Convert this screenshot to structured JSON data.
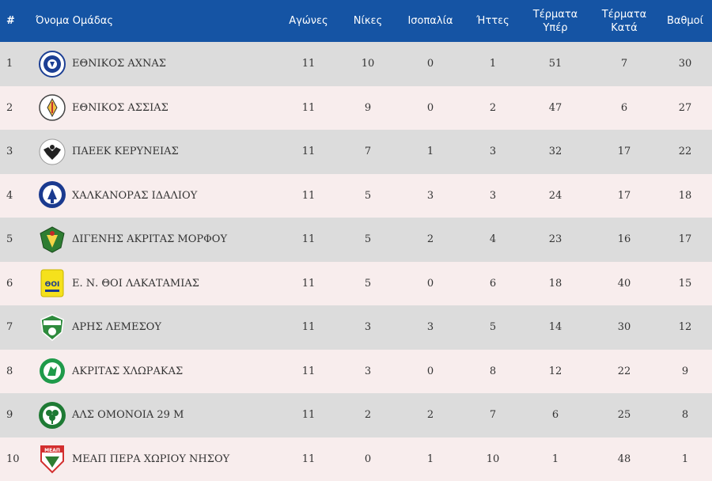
{
  "columns": {
    "pos": "#",
    "team": "Όνομα Ομάδας",
    "played": "Αγώνες",
    "wins": "Νίκες",
    "draws": "Ισοπαλία",
    "losses": "Ήττες",
    "gf_1": "Τέρματα",
    "gf_2": "Υπέρ",
    "ga_1": "Τέρματα",
    "ga_2": "Κατά",
    "points": "Βαθμοί"
  },
  "rows": [
    {
      "pos": "1",
      "team": "ΕΘΝΙΚΟΣ ΑΧΝΑΣ",
      "logo": "ethnikos-achnas-crest",
      "played": "11",
      "wins": "10",
      "draws": "0",
      "losses": "1",
      "gf": "51",
      "ga": "7",
      "points": "30"
    },
    {
      "pos": "2",
      "team": "ΕΘΝΙΚΟΣ ΑΣΣΙΑΣ",
      "logo": "ethnikos-assias-crest",
      "played": "11",
      "wins": "9",
      "draws": "0",
      "losses": "2",
      "gf": "47",
      "ga": "6",
      "points": "27"
    },
    {
      "pos": "3",
      "team": "ΠΑΕΕΚ ΚΕΡΥΝΕΙΑΣ",
      "logo": "paeek-crest",
      "played": "11",
      "wins": "7",
      "draws": "1",
      "losses": "3",
      "gf": "32",
      "ga": "17",
      "points": "22"
    },
    {
      "pos": "4",
      "team": "ΧΑΛΚΑΝΟΡΑΣ ΙΔΑΛΙΟΥ",
      "logo": "chalkanoras-crest",
      "played": "11",
      "wins": "5",
      "draws": "3",
      "losses": "3",
      "gf": "24",
      "ga": "17",
      "points": "18"
    },
    {
      "pos": "5",
      "team": "ΔΙΓΕΝΗΣ ΑΚΡΙΤΑΣ ΜΟΡΦΟΥ",
      "logo": "digenis-crest",
      "played": "11",
      "wins": "5",
      "draws": "2",
      "losses": "4",
      "gf": "23",
      "ga": "16",
      "points": "17"
    },
    {
      "pos": "6",
      "team": "Ε. Ν. ΘΟΙ ΛΑΚΑΤΑΜΙΑΣ",
      "logo": "thoi-crest",
      "played": "11",
      "wins": "5",
      "draws": "0",
      "losses": "6",
      "gf": "18",
      "ga": "40",
      "points": "15"
    },
    {
      "pos": "7",
      "team": "ΑΡΗΣ ΛΕΜΕΣΟΥ",
      "logo": "aris-crest",
      "played": "11",
      "wins": "3",
      "draws": "3",
      "losses": "5",
      "gf": "14",
      "ga": "30",
      "points": "12"
    },
    {
      "pos": "8",
      "team": "ΑΚΡΙΤΑΣ ΧΛΩΡΑΚΑΣ",
      "logo": "akritas-crest",
      "played": "11",
      "wins": "3",
      "draws": "0",
      "losses": "8",
      "gf": "12",
      "ga": "22",
      "points": "9"
    },
    {
      "pos": "9",
      "team": "ΑΛΣ ΟΜΟΝΟΙΑ 29 Μ",
      "logo": "omonoia-crest",
      "played": "11",
      "wins": "2",
      "draws": "2",
      "losses": "7",
      "gf": "6",
      "ga": "25",
      "points": "8"
    },
    {
      "pos": "10",
      "team": "ΜΕΑΠ ΠΕΡΑ ΧΩΡΙΟΥ ΝΗΣΟΥ",
      "logo": "meap-crest",
      "played": "11",
      "wins": "0",
      "draws": "1",
      "losses": "10",
      "gf": "1",
      "ga": "48",
      "points": "1"
    }
  ],
  "colors": {
    "header_bg": "#1554a4",
    "row_odd": "#dcdcdc",
    "row_even": "#f8eded"
  }
}
